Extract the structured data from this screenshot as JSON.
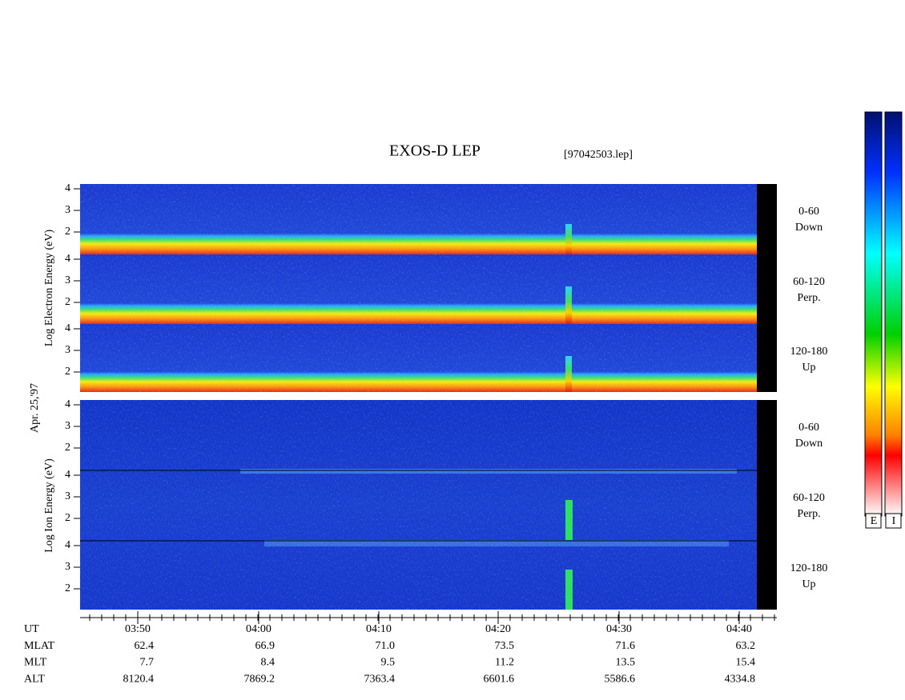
{
  "header": {
    "title": "EXOS-D LEP",
    "file": "[97042503.lep]"
  },
  "date": "Apr. 25,'97",
  "electron": {
    "axis_label": "Log Electron Energy (eV)",
    "yticks": [
      "4",
      "3",
      "2"
    ],
    "panels": [
      {
        "range": "0-60",
        "direction": "Down"
      },
      {
        "range": "60-120",
        "direction": "Perp."
      },
      {
        "range": "120-180",
        "direction": "Up"
      }
    ]
  },
  "ion": {
    "axis_label": "Log Ion Energy (eV)",
    "yticks": [
      "4",
      "3",
      "2"
    ],
    "panels": [
      {
        "range": "0-60",
        "direction": "Down"
      },
      {
        "range": "60-120",
        "direction": "Perp."
      },
      {
        "range": "120-180",
        "direction": "Up"
      }
    ]
  },
  "colorbars": [
    "E",
    "I"
  ],
  "ephemeris": {
    "rows": [
      {
        "label": "UT",
        "values": [
          "03:50",
          "04:00",
          "04:10",
          "04:20",
          "04:30",
          "04:40"
        ]
      },
      {
        "label": "MLAT",
        "values": [
          "62.4",
          "66.9",
          "71.0",
          "73.5",
          "71.6",
          "63.2"
        ]
      },
      {
        "label": "MLT",
        "values": [
          "7.7",
          "8.4",
          "9.5",
          "11.2",
          "13.5",
          "15.4"
        ]
      },
      {
        "label": "ALT",
        "values": [
          "8120.4",
          "7869.2",
          "7363.4",
          "6601.6",
          "5586.6",
          "4334.8"
        ]
      }
    ]
  }
}
